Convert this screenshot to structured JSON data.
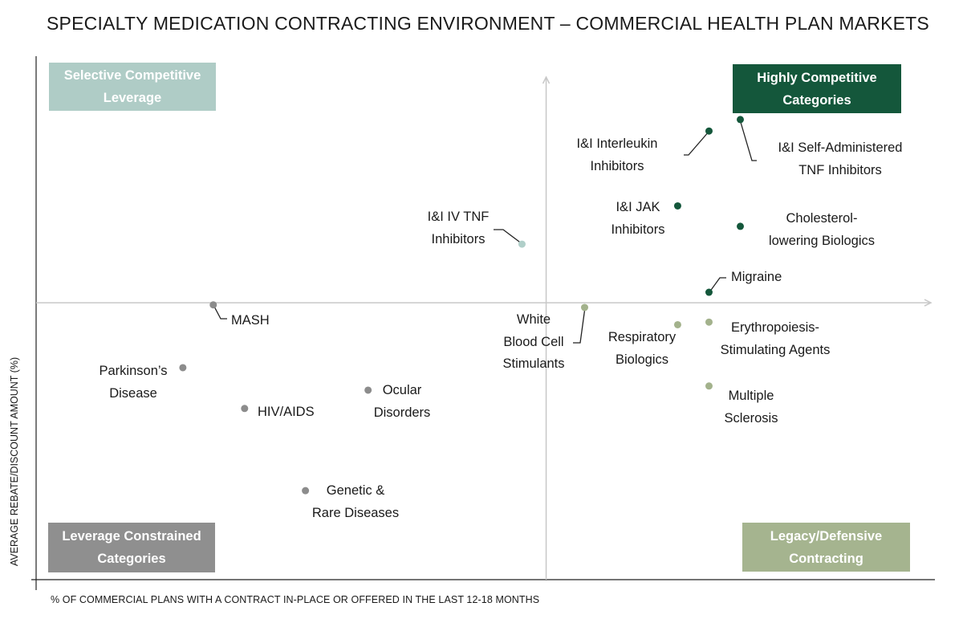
{
  "chart_data": {
    "type": "scatter",
    "title": "SPECIALTY MEDICATION CONTRACTING ENVIRONMENT – COMMERCIAL HEALTH PLAN MARKETS",
    "xlabel": "% OF COMMERCIAL PLANS WITH A CONTRACT IN-PLACE OR OFFERED IN THE LAST 12-18 MONTHS",
    "ylabel": "AVERAGE REBATE/DISCOUNT AMOUNT (%)",
    "xlim": [
      0,
      100
    ],
    "ylim": [
      0,
      100
    ],
    "quadrant_divider": {
      "x": 57.0,
      "y": 52.9
    },
    "grid": false,
    "quadrants": [
      {
        "id": "tl",
        "label": "Selective Competitive Leverage",
        "color": "#afccc6"
      },
      {
        "id": "tr",
        "label": "Highly Competitive Categories",
        "color": "#14573b"
      },
      {
        "id": "bl",
        "label": "Leverage Constrained Categories",
        "color": "#8f8f8f"
      },
      {
        "id": "br",
        "label": "Legacy/Defensive Contracting",
        "color": "#a5b48f"
      }
    ],
    "group_colors": {
      "tr": "#14573b",
      "tl": "#b0cfc9",
      "bl": "#8c8c8c",
      "br": "#a3b28c"
    },
    "points": [
      {
        "label": "I&I Interleukin Inhibitors",
        "x": 75.2,
        "y": 85.7,
        "group": "tr"
      },
      {
        "label": "I&I Self-Administered TNF Inhibitors",
        "x": 78.7,
        "y": 87.9,
        "group": "tr"
      },
      {
        "label": "I&I JAK Inhibitors",
        "x": 71.7,
        "y": 71.4,
        "group": "tr"
      },
      {
        "label": "Cholesterol-lowering Biologics",
        "x": 78.7,
        "y": 67.5,
        "group": "tr"
      },
      {
        "label": "Migraine",
        "x": 75.2,
        "y": 54.9,
        "group": "tr"
      },
      {
        "label": "I&I IV TNF Inhibitors",
        "x": 54.3,
        "y": 64.1,
        "group": "tl"
      },
      {
        "label": "MASH",
        "x": 19.8,
        "y": 52.5,
        "group": "bl"
      },
      {
        "label": "Parkinson’s Disease",
        "x": 16.4,
        "y": 40.5,
        "group": "bl"
      },
      {
        "label": "HIV/AIDS",
        "x": 23.3,
        "y": 32.7,
        "group": "bl"
      },
      {
        "label": "Ocular Disorders",
        "x": 37.1,
        "y": 36.2,
        "group": "bl"
      },
      {
        "label": "Genetic & Rare Diseases",
        "x": 30.1,
        "y": 17.0,
        "group": "bl"
      },
      {
        "label": "White Blood Cell Stimulants",
        "x": 61.3,
        "y": 52.0,
        "group": "br"
      },
      {
        "label": "Respiratory Biologics",
        "x": 71.7,
        "y": 48.7,
        "group": "br"
      },
      {
        "label": "Erythropoiesis-Stimulating Agents",
        "x": 75.2,
        "y": 49.2,
        "group": "br"
      },
      {
        "label": "Multiple Sclerosis",
        "x": 75.2,
        "y": 37.0,
        "group": "br"
      }
    ],
    "label_lines": [
      [
        "I&I Interleukin",
        "Inhibitors"
      ],
      [
        "I&I Self-Administered",
        "TNF Inhibitors"
      ],
      [
        "I&I JAK",
        "Inhibitors"
      ],
      [
        "Cholesterol-",
        "lowering Biologics"
      ],
      [
        "Migraine"
      ],
      [
        "I&I IV TNF",
        "Inhibitors"
      ],
      [
        "MASH"
      ],
      [
        "Parkinson’s",
        "Disease"
      ],
      [
        "HIV/AIDS"
      ],
      [
        "Ocular",
        "Disorders"
      ],
      [
        "Genetic &",
        "Rare Diseases"
      ],
      [
        "White",
        "Blood Cell",
        "Stimulants"
      ],
      [
        "Respiratory",
        "Biologics"
      ],
      [
        "Erythropoiesis-",
        "Stimulating Agents"
      ],
      [
        "Multiple",
        "Sclerosis"
      ]
    ],
    "quadrant_lines": [
      [
        "Selective Competitive",
        "Leverage"
      ],
      [
        "Highly Competitive",
        "Categories"
      ],
      [
        "Leverage Constrained",
        "Categories"
      ],
      [
        "Legacy/Defensive",
        "Contracting"
      ]
    ]
  }
}
